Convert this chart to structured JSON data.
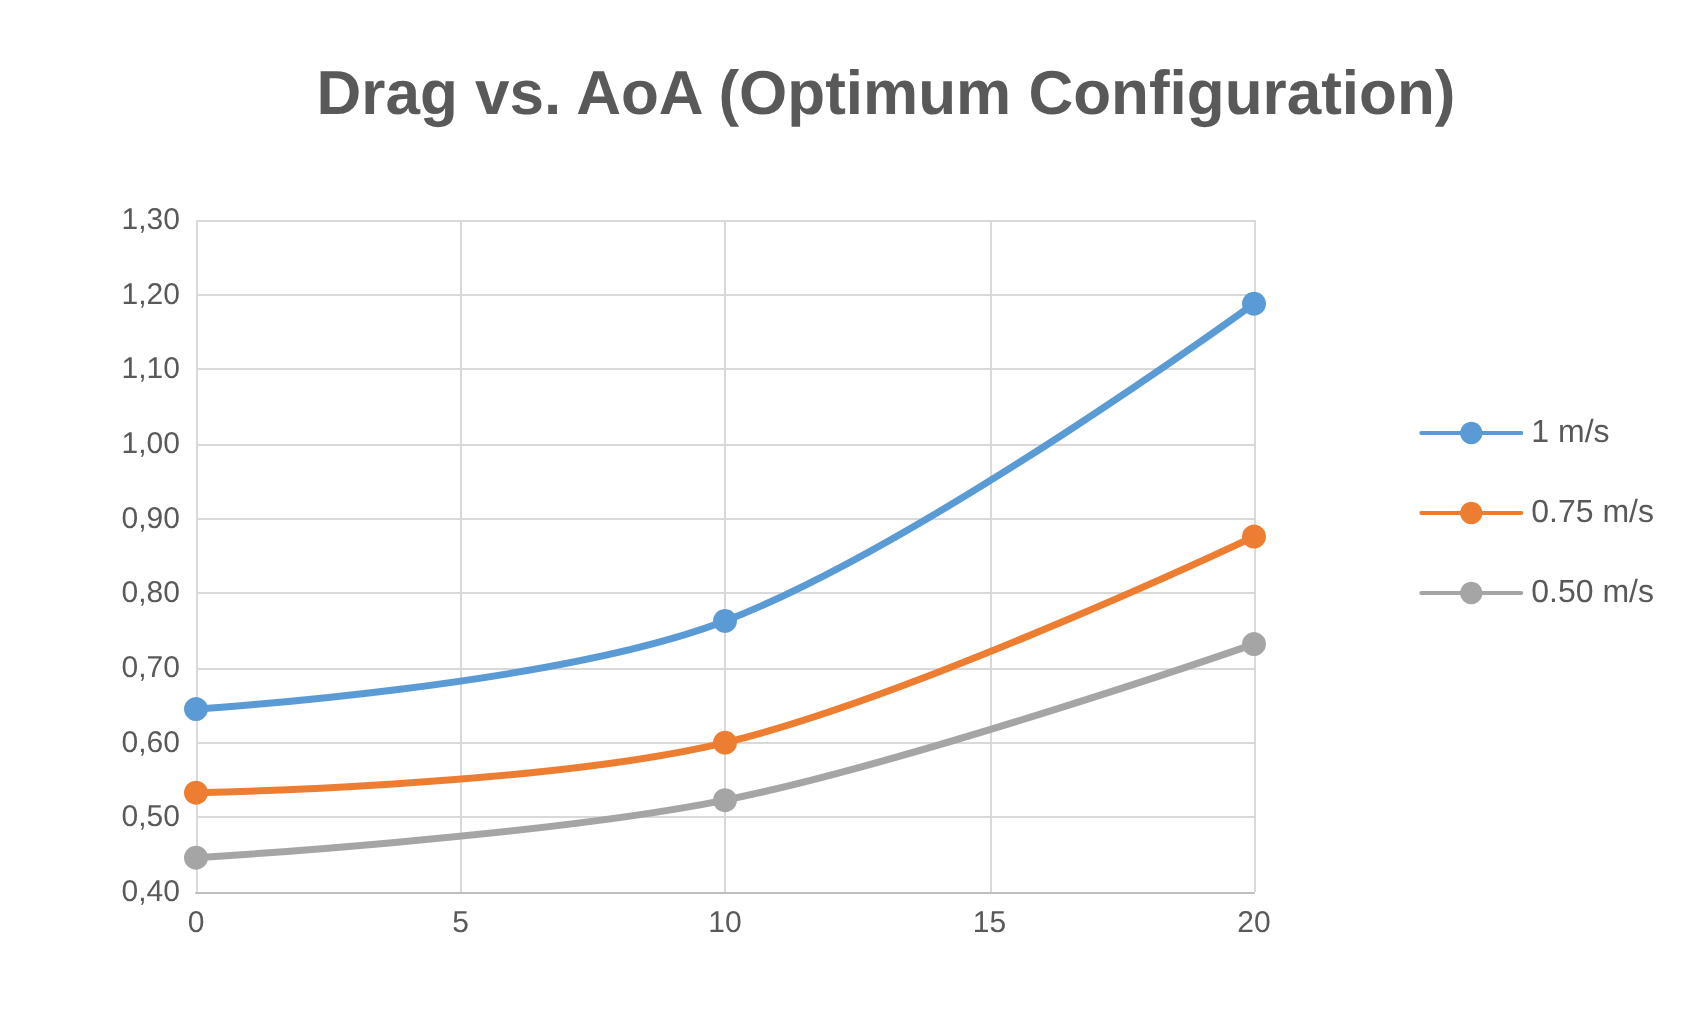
{
  "chart_data": {
    "type": "line",
    "title": "Drag vs. AoA (Optimum Configuration)",
    "x": [
      0,
      10,
      20
    ],
    "series": [
      {
        "name": "1 m/s",
        "color": "#5b9bd5",
        "values": [
          0.645,
          0.763,
          1.188
        ]
      },
      {
        "name": "0.75 m/s",
        "color": "#ed7d31",
        "values": [
          0.533,
          0.6,
          0.876
        ]
      },
      {
        "name": "0.50 m/s",
        "color": "#a5a5a5",
        "values": [
          0.446,
          0.523,
          0.732
        ]
      }
    ],
    "xlim": [
      0,
      20
    ],
    "xticks": [
      0,
      5,
      10,
      15,
      20
    ],
    "ylim": [
      0.4,
      1.3
    ],
    "yticks": [
      {
        "value": 0.4,
        "label": "0,40"
      },
      {
        "value": 0.5,
        "label": "0,50"
      },
      {
        "value": 0.6,
        "label": "0,60"
      },
      {
        "value": 0.7,
        "label": "0,70"
      },
      {
        "value": 0.8,
        "label": "0,80"
      },
      {
        "value": 0.9,
        "label": "0,90"
      },
      {
        "value": 1.0,
        "label": "1,00"
      },
      {
        "value": 1.1,
        "label": "1,10"
      },
      {
        "value": 1.2,
        "label": "1,20"
      },
      {
        "value": 1.3,
        "label": "1,30"
      }
    ],
    "grid": true,
    "legend": "right",
    "marker": "circle",
    "line_style": "solid"
  }
}
